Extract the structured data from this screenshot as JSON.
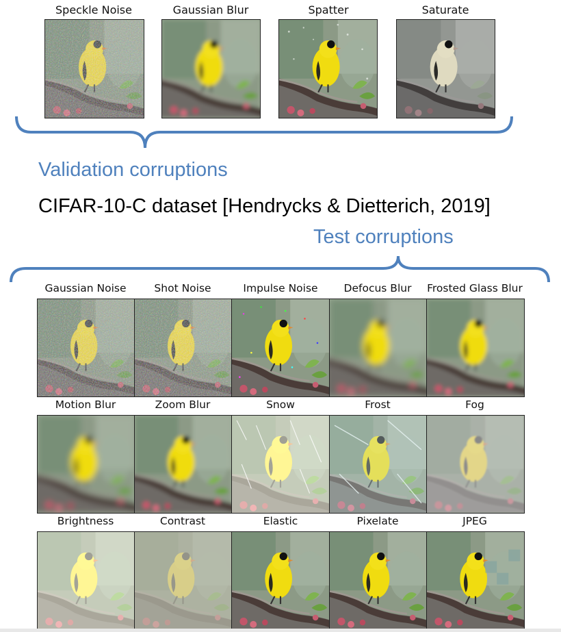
{
  "validation": {
    "heading": "Validation corruptions",
    "corruptions": [
      "Speckle Noise",
      "Gaussian Blur",
      "Spatter",
      "Saturate"
    ]
  },
  "dataset_title": "CIFAR-10-C dataset [Hendrycks & Dietterich, 2019]",
  "test": {
    "heading": "Test corruptions",
    "rows": [
      [
        "Gaussian Noise",
        "Shot Noise",
        "Impulse Noise",
        "Defocus Blur",
        "Frosted Glass Blur"
      ],
      [
        "Motion Blur",
        "Zoom Blur",
        "Snow",
        "Frost",
        "Fog"
      ],
      [
        "Brightness",
        "Contrast",
        "Elastic",
        "Pixelate",
        "JPEG"
      ]
    ]
  },
  "colors": {
    "accent": "#4f81bd",
    "bird": "#f0dc10",
    "branch": "#5a4a44"
  }
}
